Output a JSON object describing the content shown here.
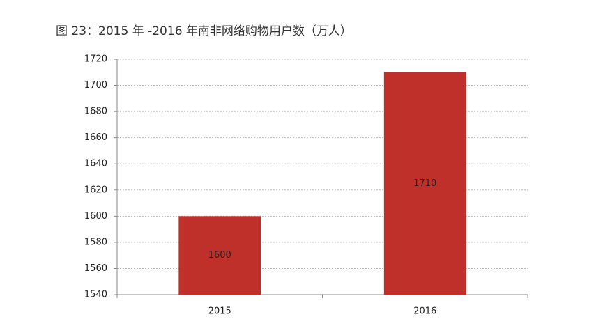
{
  "chart_data": {
    "type": "bar",
    "title": "图 23：2015 年 -2016 年南非网络购物用户数（万人）",
    "categories": [
      "2015",
      "2016"
    ],
    "values": [
      1600,
      1710
    ],
    "color": "#c0302a",
    "ylim": [
      1540,
      1720
    ],
    "yticks": [
      1540,
      1560,
      1580,
      1600,
      1620,
      1640,
      1660,
      1680,
      1700,
      1720
    ],
    "grid": true
  }
}
